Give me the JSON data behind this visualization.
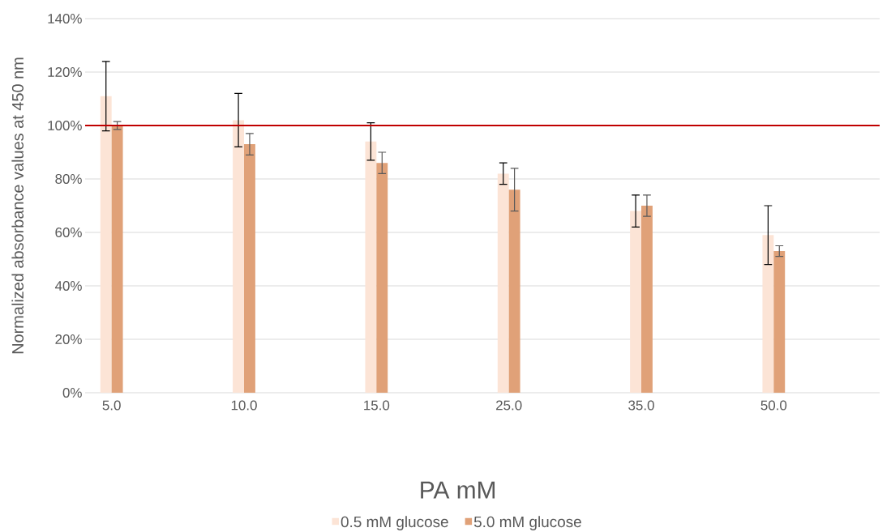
{
  "chart_data": {
    "type": "bar",
    "xlabel": "PA mM",
    "ylabel": "Normalized absorbance values at 450 nm",
    "categories": [
      "5.0",
      "10.0",
      "15.0",
      "25.0",
      "35.0",
      "50.0"
    ],
    "series": [
      {
        "name": "0.5 mM glucose",
        "color": "#fce4d6",
        "values": [
          111,
          102,
          94,
          82,
          68,
          59
        ],
        "errors": [
          13,
          10,
          7,
          4,
          6,
          11
        ]
      },
      {
        "name": "5.0 mM glucose",
        "color": "#e0a178",
        "values": [
          100,
          93,
          86,
          76,
          70,
          53
        ],
        "errors": [
          1.5,
          4,
          4,
          8,
          4,
          2
        ]
      }
    ],
    "ref_lines": [
      {
        "axis": "y",
        "value": 100,
        "color": "#c00000"
      }
    ],
    "ylim": [
      0,
      140
    ],
    "yticks": [
      {
        "value": 0,
        "label": "0%"
      },
      {
        "value": 20,
        "label": "20%"
      },
      {
        "value": 40,
        "label": "40%"
      },
      {
        "value": 60,
        "label": "60%"
      },
      {
        "value": 80,
        "label": "80%"
      },
      {
        "value": 100,
        "label": "100%"
      },
      {
        "value": 120,
        "label": "120%"
      },
      {
        "value": 140,
        "label": "140%"
      }
    ],
    "grid": "y",
    "legend": "bottom"
  }
}
